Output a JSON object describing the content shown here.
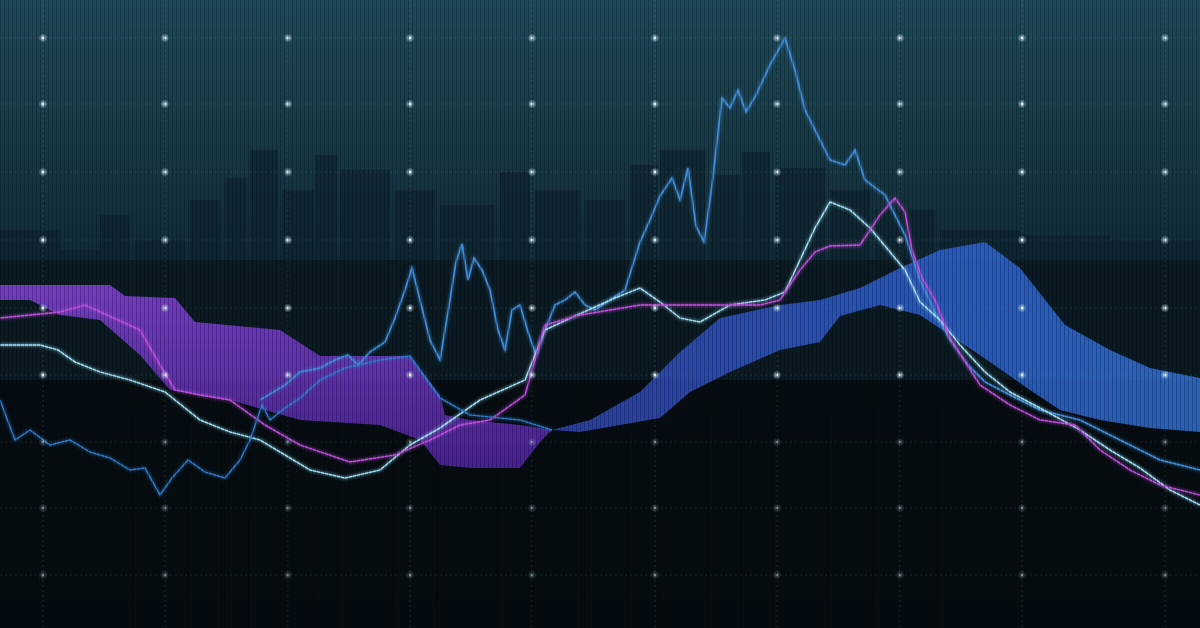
{
  "scene": {
    "subject": "ichimoku-cloud-over-city-skyline",
    "colors": {
      "sky_top": "#1d4a5a",
      "sky_mid": "#12303c",
      "ground": "#05090d",
      "grid_line": "#6fa3b3",
      "grid_dot": "#e8f6ff",
      "purple_cloud": "#7a3cd8",
      "blue_cloud": "#2a5fe8",
      "cyan_line": "#9fe6ff",
      "bright_blue_line": "#3d8fe0",
      "magenta_line": "#c64ee8",
      "pale_line": "#dcb6ff"
    }
  }
}
